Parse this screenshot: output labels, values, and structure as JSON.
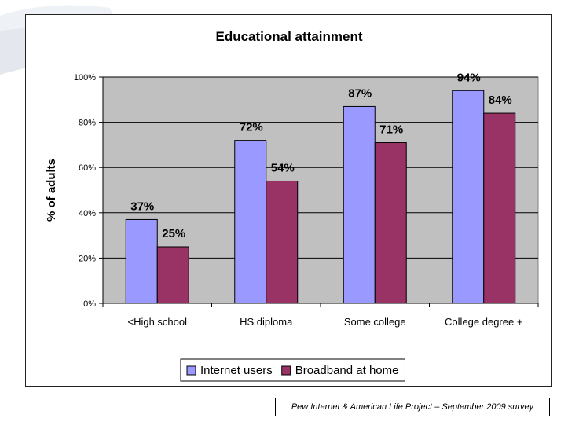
{
  "chart_data": {
    "type": "bar",
    "title": "Educational attainment",
    "ylabel": "% of adults",
    "xlabel": "",
    "categories": [
      "<High school",
      "HS diploma",
      "Some college",
      "College degree +"
    ],
    "series": [
      {
        "name": "Internet users",
        "values": [
          37,
          72,
          87,
          94
        ],
        "labels": [
          "37%",
          "72%",
          "87%",
          "94%"
        ],
        "color": "#9999ff"
      },
      {
        "name": "Broadband at home",
        "values": [
          25,
          54,
          71,
          84
        ],
        "labels": [
          "25%",
          "54%",
          "71%",
          "84%"
        ],
        "color": "#993366"
      }
    ],
    "ylim": [
      0,
      100
    ],
    "yticks": [
      0,
      20,
      40,
      60,
      80,
      100
    ],
    "ytick_labels": [
      "0%",
      "20%",
      "40%",
      "60%",
      "80%",
      "100%"
    ],
    "plot_background": "#c0c0c0",
    "grid": true,
    "legend_position": "bottom"
  },
  "source_note": "Pew Internet & American Life Project – September 2009 survey"
}
